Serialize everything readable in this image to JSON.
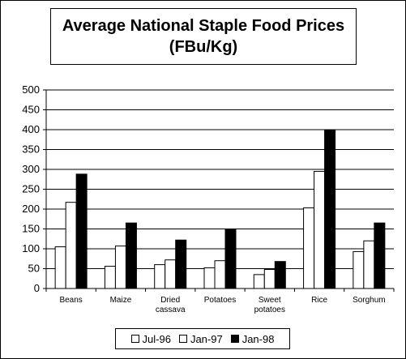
{
  "title": {
    "line1": "Average National Staple Food Prices",
    "line2": "(FBu/Kg)"
  },
  "chart_data": {
    "type": "bar",
    "title": "Average National Staple Food Prices (FBu/Kg)",
    "categories": [
      [
        "Beans"
      ],
      [
        "Maize"
      ],
      [
        "Dried",
        "cassava"
      ],
      [
        "Potatoes"
      ],
      [
        "Sweet",
        "potatoes"
      ],
      [
        "Rice"
      ],
      [
        "Sorghum"
      ]
    ],
    "series": [
      {
        "name": "Jul-96",
        "color": "#ffffff",
        "values": [
          105,
          56,
          60,
          52,
          35,
          203,
          93
        ]
      },
      {
        "name": "Jan-97",
        "color": "#ffffff",
        "values": [
          217,
          107,
          72,
          70,
          48,
          295,
          120
        ]
      },
      {
        "name": "Jan-98",
        "color": "#000000",
        "values": [
          288,
          165,
          122,
          148,
          68,
          398,
          165
        ]
      }
    ],
    "ylim": [
      0,
      500
    ],
    "yticks": [
      "0",
      "50",
      "100",
      "150",
      "200",
      "250",
      "300",
      "350",
      "400",
      "450",
      "500"
    ],
    "grid": true,
    "legend": "bottom"
  }
}
